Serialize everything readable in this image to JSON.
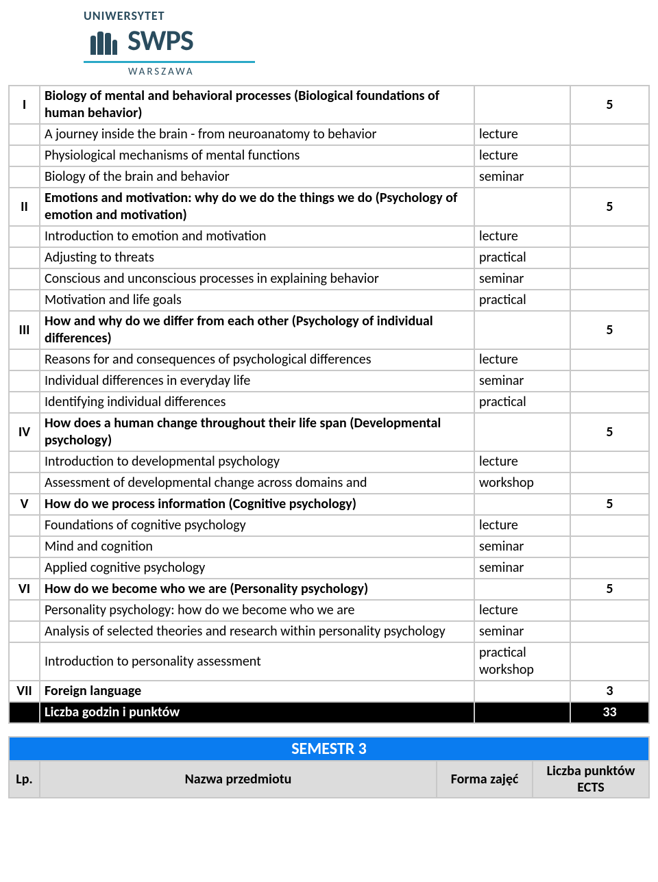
{
  "logo": {
    "university": "UNIWERSYTET",
    "brand": "SWPS",
    "city": "WARSZAWA"
  },
  "modules": [
    {
      "num": "I",
      "title": "Biology of mental and behavioral processes (Biological foundations of human behavior)",
      "ects": "5",
      "courses": [
        {
          "name": "A journey inside the brain - from neuroanatomy to behavior",
          "form": "lecture"
        },
        {
          "name": "Physiological mechanisms of mental functions",
          "form": "lecture"
        },
        {
          "name": "Biology of the brain and behavior",
          "form": "seminar"
        }
      ]
    },
    {
      "num": "II",
      "title": "Emotions and motivation: why do we do the things we do (Psychology of emotion and motivation)",
      "ects": "5",
      "courses": [
        {
          "name": "Introduction to emotion and motivation",
          "form": "lecture"
        },
        {
          "name": "Adjusting to threats",
          "form": "practical"
        },
        {
          "name": "Conscious and unconscious processes in explaining behavior",
          "form": "seminar"
        },
        {
          "name": "Motivation and life goals",
          "form": "practical"
        }
      ]
    },
    {
      "num": "III",
      "title": "How and why do we differ from each other (Psychology of individual differences)",
      "ects": "5",
      "courses": [
        {
          "name": "Reasons for and consequences of psychological differences",
          "form": "lecture"
        },
        {
          "name": "Individual differences in everyday life",
          "form": "seminar"
        },
        {
          "name": "Identifying individual differences",
          "form": "practical"
        }
      ]
    },
    {
      "num": "IV",
      "title": "How does a human change throughout their life span (Developmental psychology)",
      "ects": "5",
      "courses": [
        {
          "name": "Introduction to developmental psychology",
          "form": "lecture"
        },
        {
          "name": "Assessment of developmental change across domains and",
          "form": "workshop"
        }
      ]
    },
    {
      "num": "V",
      "title": "How do we process information (Cognitive psychology)",
      "ects": "5",
      "courses": [
        {
          "name": "Foundations of cognitive psychology",
          "form": "lecture"
        },
        {
          "name": "Mind and cognition",
          "form": "seminar"
        },
        {
          "name": "Applied cognitive psychology",
          "form": "seminar"
        }
      ]
    },
    {
      "num": "VI",
      "title": "How do we become who we are (Personality psychology)",
      "ects": "5",
      "courses": [
        {
          "name": "Personality psychology: how do we become who we are",
          "form": "lecture"
        },
        {
          "name": "Analysis of selected theories and research within personality psychology",
          "form": "seminar"
        },
        {
          "name": "Introduction to personality assessment",
          "form": "practical workshop"
        }
      ]
    },
    {
      "num": "VII",
      "title": "Foreign language",
      "ects": "3",
      "courses": []
    }
  ],
  "total": {
    "label": "Liczba godzin i punktów",
    "ects": "33"
  },
  "semester3": {
    "title": "SEMESTR 3",
    "headers": {
      "lp": "Lp.",
      "name": "Nazwa przedmiotu",
      "form": "Forma zajęć",
      "ects": "Liczba punktów ECTS"
    }
  }
}
